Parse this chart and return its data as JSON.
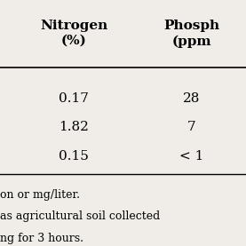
{
  "col1_header": "Nitrogen\n(%)",
  "col2_header": "Phosph\n(ppm",
  "data_rows": [
    [
      "0.17",
      "28"
    ],
    [
      "1.82",
      "7"
    ],
    [
      "0.15",
      "< 1"
    ]
  ],
  "footnotes": [
    "on or mg/liter.",
    "as agricultural soil collected",
    "ng for 3 hours."
  ],
  "bg_color": "#f0ede8",
  "font_size": 11
}
